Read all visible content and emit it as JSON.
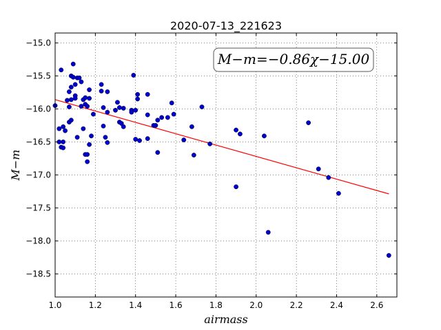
{
  "chart_data": {
    "type": "scatter",
    "title": "2020-07-13_221623",
    "xlabel": "airmass",
    "ylabel": "M−m",
    "xlim": [
      1.0,
      2.7
    ],
    "ylim": [
      -18.85,
      -14.85
    ],
    "y_inverted": true,
    "grid": true,
    "x_ticks": [
      1.0,
      1.2,
      1.4,
      1.6,
      1.8,
      2.0,
      2.2,
      2.4,
      2.6
    ],
    "x_tick_labels": [
      "1.0",
      "1.2",
      "1.4",
      "1.6",
      "1.8",
      "2.0",
      "2.2",
      "2.4",
      "2.6"
    ],
    "y_ticks": [
      -15.0,
      -15.5,
      -16.0,
      -16.5,
      -17.0,
      -17.5,
      -18.0,
      -18.5
    ],
    "y_tick_labels": [
      "−15.0",
      "−15.5",
      "−16.0",
      "−16.5",
      "−17.0",
      "−17.5",
      "−18.0",
      "−18.5"
    ],
    "annotation": "M−m=−0.86χ−15.00",
    "fit": {
      "slope": -0.86,
      "intercept": -15.0,
      "x_range": [
        1.0,
        2.66
      ],
      "color": "#ff0000"
    },
    "point_color": "#0000cc",
    "series": [
      {
        "points": [
          [
            1.0,
            -15.95
          ],
          [
            1.02,
            -16.3
          ],
          [
            1.02,
            -16.5
          ],
          [
            1.03,
            -15.41
          ],
          [
            1.03,
            -16.58
          ],
          [
            1.04,
            -16.59
          ],
          [
            1.04,
            -16.5
          ],
          [
            1.04,
            -16.27
          ],
          [
            1.05,
            -16.33
          ],
          [
            1.06,
            -15.87
          ],
          [
            1.07,
            -15.74
          ],
          [
            1.07,
            -16.2
          ],
          [
            1.07,
            -15.97
          ],
          [
            1.08,
            -16.17
          ],
          [
            1.08,
            -15.5
          ],
          [
            1.08,
            -15.67
          ],
          [
            1.08,
            -15.86
          ],
          [
            1.09,
            -15.32
          ],
          [
            1.09,
            -15.52
          ],
          [
            1.1,
            -15.63
          ],
          [
            1.1,
            -15.8
          ],
          [
            1.1,
            -15.84
          ],
          [
            1.11,
            -16.43
          ],
          [
            1.11,
            -15.53
          ],
          [
            1.12,
            -15.53
          ],
          [
            1.13,
            -15.59
          ],
          [
            1.13,
            -15.96
          ],
          [
            1.14,
            -15.86
          ],
          [
            1.14,
            -16.3
          ],
          [
            1.15,
            -16.69
          ],
          [
            1.15,
            -15.83
          ],
          [
            1.15,
            -15.93
          ],
          [
            1.16,
            -16.69
          ],
          [
            1.16,
            -16.8
          ],
          [
            1.16,
            -15.96
          ],
          [
            1.17,
            -15.71
          ],
          [
            1.17,
            -15.84
          ],
          [
            1.17,
            -16.54
          ],
          [
            1.18,
            -16.41
          ],
          [
            1.19,
            -16.08
          ],
          [
            1.23,
            -15.63
          ],
          [
            1.23,
            -15.73
          ],
          [
            1.24,
            -15.98
          ],
          [
            1.24,
            -16.26
          ],
          [
            1.25,
            -16.43
          ],
          [
            1.26,
            -16.51
          ],
          [
            1.26,
            -15.74
          ],
          [
            1.26,
            -16.05
          ],
          [
            1.3,
            -16.02
          ],
          [
            1.31,
            -15.9
          ],
          [
            1.32,
            -15.98
          ],
          [
            1.32,
            -16.2
          ],
          [
            1.33,
            -16.22
          ],
          [
            1.34,
            -16.27
          ],
          [
            1.34,
            -15.99
          ],
          [
            1.38,
            -16.02
          ],
          [
            1.38,
            -16.05
          ],
          [
            1.39,
            -15.49
          ],
          [
            1.4,
            -16.46
          ],
          [
            1.4,
            -16.02
          ],
          [
            1.41,
            -15.78
          ],
          [
            1.41,
            -15.85
          ],
          [
            1.42,
            -16.48
          ],
          [
            1.46,
            -16.09
          ],
          [
            1.46,
            -15.78
          ],
          [
            1.46,
            -16.45
          ],
          [
            1.49,
            -16.25
          ],
          [
            1.5,
            -16.25
          ],
          [
            1.51,
            -16.66
          ],
          [
            1.51,
            -16.17
          ],
          [
            1.53,
            -16.13
          ],
          [
            1.56,
            -16.13
          ],
          [
            1.58,
            -15.91
          ],
          [
            1.59,
            -16.08
          ],
          [
            1.64,
            -16.47
          ],
          [
            1.68,
            -16.27
          ],
          [
            1.69,
            -16.7
          ],
          [
            1.73,
            -15.97
          ],
          [
            1.77,
            -16.53
          ],
          [
            1.9,
            -17.18
          ],
          [
            1.9,
            -16.32
          ],
          [
            1.92,
            -16.38
          ],
          [
            2.04,
            -16.41
          ],
          [
            2.06,
            -17.87
          ],
          [
            2.26,
            -16.21
          ],
          [
            2.31,
            -16.91
          ],
          [
            2.36,
            -17.04
          ],
          [
            2.41,
            -17.28
          ],
          [
            2.66,
            -18.22
          ]
        ]
      }
    ]
  }
}
